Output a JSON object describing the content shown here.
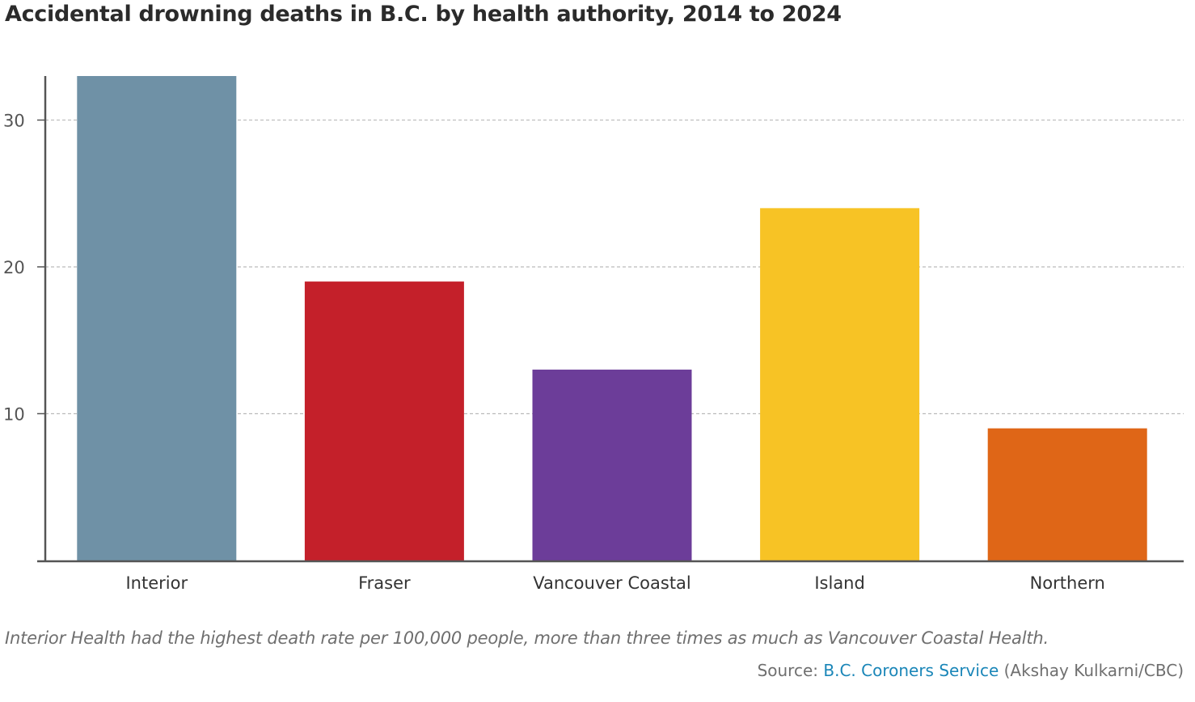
{
  "title": "Accidental drowning deaths in B.C. by health authority, 2014 to 2024",
  "caption": "Interior Health had the highest death rate per 100,000 people, more than three times as much as Vancouver Coastal Health.",
  "source": {
    "prefix": "Source: ",
    "link_text": "B.C. Coroners Service",
    "suffix": " (Akshay Kulkarni/CBC)"
  },
  "colors": {
    "grid": "#bbbbbb",
    "axis": "#555555",
    "source_link": "#1a86b8"
  },
  "chart_data": {
    "type": "bar",
    "categories": [
      "Interior",
      "Fraser",
      "Vancouver Coastal",
      "Island",
      "Northern"
    ],
    "values": [
      33,
      19,
      13,
      24,
      9
    ],
    "colors": [
      "#6f91a6",
      "#c4202a",
      "#6c3d99",
      "#f7c325",
      "#df6617"
    ],
    "title": "Accidental drowning deaths in B.C. by health authority, 2014 to 2024",
    "xlabel": "",
    "ylabel": "",
    "ylim": [
      0,
      33
    ],
    "yticks": [
      10,
      20,
      30
    ],
    "grid": true,
    "legend": "none"
  }
}
